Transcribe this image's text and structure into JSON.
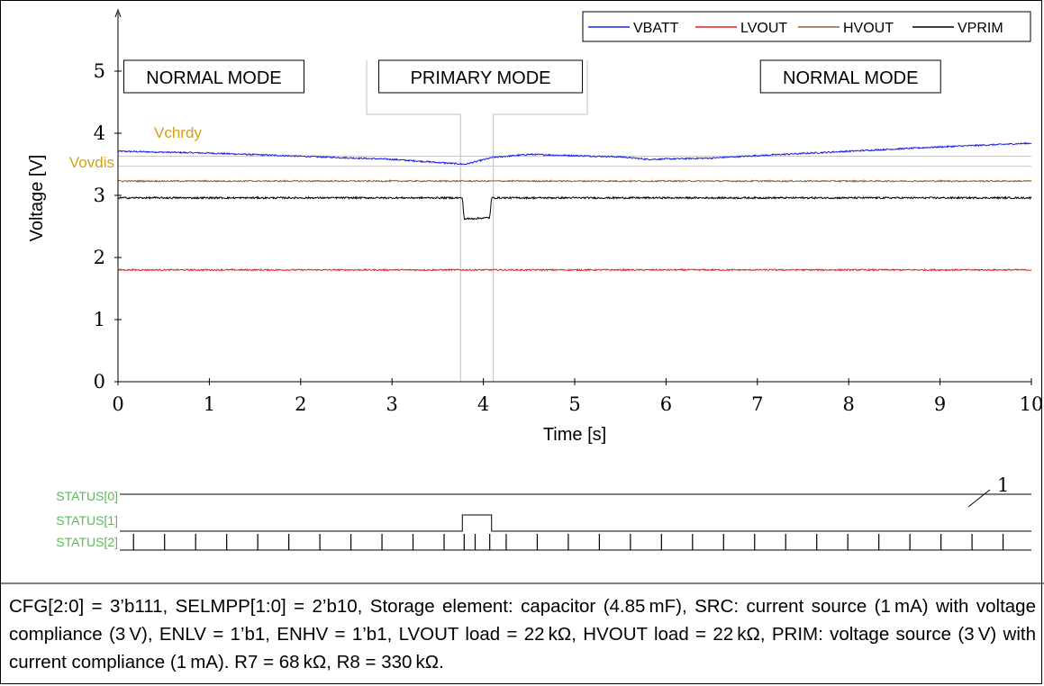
{
  "chart_data": {
    "type": "line",
    "xlabel": "Time [s]",
    "ylabel": "Voltage [V]",
    "xlim": [
      0,
      10
    ],
    "ylim": [
      0,
      5.9
    ],
    "xticks": [
      "0",
      "1",
      "2",
      "3",
      "4",
      "5",
      "6",
      "7",
      "8",
      "9",
      "10"
    ],
    "yticks": [
      "0",
      "1",
      "2",
      "3",
      "4",
      "5"
    ],
    "grid": false,
    "legend_position": "top-right",
    "series": [
      {
        "name": "VBATT",
        "color": "#1f1fe0",
        "noise": 0.012,
        "points": [
          [
            0,
            3.71
          ],
          [
            1,
            3.68
          ],
          [
            2,
            3.63
          ],
          [
            3,
            3.58
          ],
          [
            3.5,
            3.53
          ],
          [
            3.8,
            3.5
          ],
          [
            4.1,
            3.61
          ],
          [
            4.5,
            3.66
          ],
          [
            5.5,
            3.62
          ],
          [
            5.8,
            3.58
          ],
          [
            6.5,
            3.6
          ],
          [
            7,
            3.64
          ],
          [
            8,
            3.71
          ],
          [
            9,
            3.78
          ],
          [
            10,
            3.84
          ]
        ]
      },
      {
        "name": "LVOUT",
        "color": "#e32222",
        "noise": 0.012,
        "points": [
          [
            0,
            1.8
          ],
          [
            10,
            1.8
          ]
        ]
      },
      {
        "name": "HVOUT",
        "color": "#8c6239",
        "noise": 0.012,
        "points": [
          [
            0,
            3.23
          ],
          [
            10,
            3.23
          ]
        ]
      },
      {
        "name": "VPRIM",
        "color": "#000000",
        "noise": 0.014,
        "points": [
          [
            0,
            2.96
          ],
          [
            3.77,
            2.96
          ],
          [
            3.79,
            2.62
          ],
          [
            4.07,
            2.64
          ],
          [
            4.09,
            2.96
          ],
          [
            10,
            2.96
          ]
        ]
      }
    ],
    "threshold_lines": [
      {
        "label": "Vchrdy",
        "value": 3.63,
        "color": "#d4a017"
      },
      {
        "label": "Vovdis",
        "value": 3.47,
        "color": "#d4a017"
      }
    ],
    "mode_boxes": [
      {
        "label": "NORMAL MODE",
        "x_center": 1.05
      },
      {
        "label": "PRIMARY MODE",
        "x_center": 3.97
      },
      {
        "label": "NORMAL MODE",
        "x_center": 8.02
      }
    ],
    "primary_window": [
      3.77,
      4.09
    ],
    "status": {
      "labels": [
        "STATUS[0]",
        "STATUS[1]",
        "STATUS[2]"
      ],
      "label_color": "#5cb85c",
      "status0_note": "1",
      "status1_high": [
        3.77,
        4.09
      ],
      "status2_period_s": 0.34
    }
  },
  "caption": "CFG[2:0] = 3’b111, SELMPP[1:0] = 2’b10, Storage element: capacitor (4.85 mF), SRC: current source (1 mA) with voltage compliance (3 V), ENLV = 1’b1, ENHV = 1’b1, LVOUT load = 22 kΩ, HVOUT load = 22 kΩ, PRIM: voltage source (3 V) with current compliance (1 mA). R7 = 68 kΩ, R8 = 330 kΩ."
}
